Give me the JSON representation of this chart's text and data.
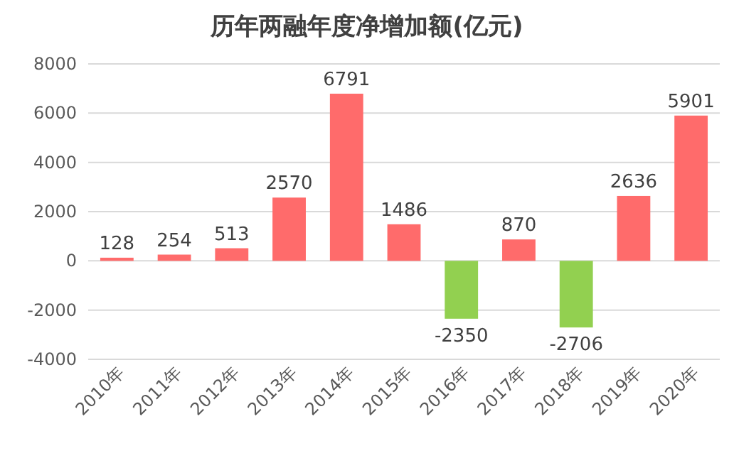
{
  "chart_data": {
    "type": "bar",
    "title": "历年两融年度净增加额(亿元)",
    "categories": [
      "2010年",
      "2011年",
      "2012年",
      "2013年",
      "2014年",
      "2015年",
      "2016年",
      "2017年",
      "2018年",
      "2019年",
      "2020年"
    ],
    "values": [
      128,
      254,
      513,
      2570,
      6791,
      1486,
      -2350,
      870,
      -2706,
      2636,
      5901
    ],
    "colors": [
      "#ff6b6b",
      "#ff6b6b",
      "#ff6b6b",
      "#ff6b6b",
      "#ff6b6b",
      "#ff6b6b",
      "#92d050",
      "#ff6b6b",
      "#92d050",
      "#ff6b6b",
      "#ff6b6b"
    ],
    "ylim": [
      -4000,
      8000
    ],
    "yticks": [
      -4000,
      -2000,
      0,
      2000,
      4000,
      6000,
      8000
    ],
    "grid": "y",
    "data_labels": true
  }
}
